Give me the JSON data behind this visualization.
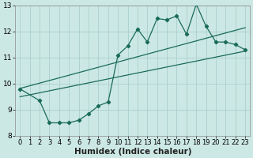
{
  "xlabel": "Humidex (Indice chaleur)",
  "bg_color": "#cce8e4",
  "grid_color": "#aacfcc",
  "line_color": "#1a6b5a",
  "xlim": [
    -0.5,
    23.5
  ],
  "ylim": [
    8,
    13
  ],
  "yticks": [
    8,
    9,
    10,
    11,
    12,
    13
  ],
  "xticks": [
    0,
    1,
    2,
    3,
    4,
    5,
    6,
    7,
    8,
    9,
    10,
    11,
    12,
    13,
    14,
    15,
    16,
    17,
    18,
    19,
    20,
    21,
    22,
    23
  ],
  "jagged_x": [
    0,
    2,
    3,
    4,
    5,
    6,
    7,
    8,
    9,
    10,
    11,
    12,
    13,
    14,
    15,
    16,
    17,
    18,
    19,
    20,
    21,
    22,
    23
  ],
  "jagged_y": [
    9.8,
    9.35,
    8.5,
    8.5,
    8.5,
    8.6,
    8.85,
    9.15,
    9.3,
    11.1,
    11.45,
    12.1,
    11.6,
    12.5,
    12.45,
    12.6,
    11.9,
    13.05,
    12.2,
    11.6,
    11.6,
    11.5,
    11.3
  ],
  "upper_line_x": [
    0,
    23
  ],
  "upper_line_y": [
    9.82,
    12.15
  ],
  "lower_line_x": [
    0,
    23
  ],
  "lower_line_y": [
    9.5,
    11.25
  ],
  "tickfont": 6.5,
  "labelfont": 7.5
}
